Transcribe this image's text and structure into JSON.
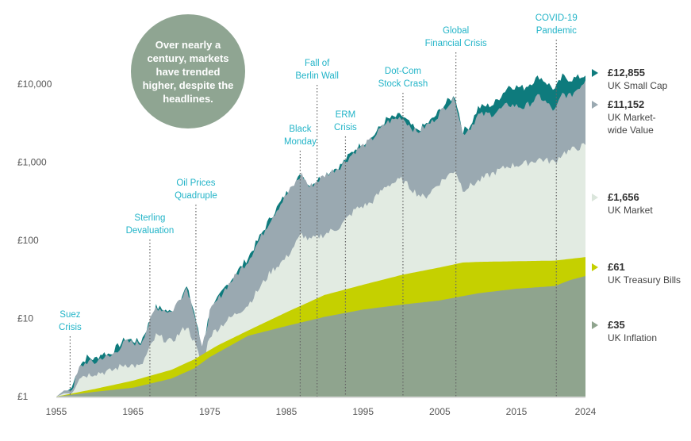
{
  "callout": "Over nearly a century, markets have trended higher, despite the headlines.",
  "chart_data": {
    "type": "area",
    "yscale": "log",
    "ylim": [
      1,
      20000
    ],
    "xlim": [
      1955,
      2024
    ],
    "yticks": [
      {
        "value": 1,
        "label": "£1"
      },
      {
        "value": 10,
        "label": "£10"
      },
      {
        "value": 100,
        "label": "£100"
      },
      {
        "value": 1000,
        "label": "£1,000"
      },
      {
        "value": 10000,
        "label": "£10,000"
      }
    ],
    "xticks": [
      1955,
      1965,
      1975,
      1985,
      1995,
      2005,
      2015,
      2024
    ],
    "series": [
      {
        "name": "UK Small Cap",
        "final": "£12,855",
        "color": "#0e7b7d",
        "x": [
          1955,
          1956,
          1957,
          1958,
          1959,
          1960,
          1961,
          1962,
          1964,
          1966,
          1968,
          1970,
          1972,
          1973,
          1974,
          1975,
          1977,
          1980,
          1983,
          1985,
          1987,
          1988,
          1990,
          1992,
          1994,
          1996,
          1998,
          2000,
          2002,
          2004,
          2006,
          2007,
          2008,
          2009,
          2010,
          2012,
          2014,
          2016,
          2018,
          2020,
          2021,
          2022,
          2024
        ],
        "y": [
          1,
          1.1,
          1.3,
          2.5,
          3.2,
          3.0,
          3.6,
          3.5,
          5.5,
          5,
          14,
          12,
          25,
          12,
          4,
          12,
          25,
          60,
          200,
          400,
          700,
          500,
          700,
          900,
          1500,
          2000,
          3500,
          4000,
          2500,
          3500,
          6000,
          7000,
          2500,
          3000,
          5000,
          5500,
          9500,
          9000,
          12500,
          8500,
          12500,
          11500,
          12855
        ]
      },
      {
        "name": "UK Market-wide Value",
        "final": "£11,152",
        "color": "#9aa9b1",
        "x": [
          1955,
          1956,
          1957,
          1958,
          1959,
          1960,
          1961,
          1962,
          1964,
          1966,
          1968,
          1970,
          1972,
          1973,
          1974,
          1975,
          1977,
          1980,
          1983,
          1985,
          1987,
          1988,
          1990,
          1992,
          1994,
          1996,
          1998,
          2000,
          2002,
          2004,
          2006,
          2007,
          2008,
          2009,
          2010,
          2012,
          2014,
          2016,
          2018,
          2020,
          2021,
          2022,
          2024
        ],
        "y": [
          1,
          1.2,
          1.2,
          2.3,
          2.8,
          2.7,
          3.2,
          3.2,
          5,
          4.8,
          14,
          12,
          25,
          12,
          4,
          12,
          24,
          55,
          190,
          380,
          700,
          480,
          680,
          880,
          1400,
          1900,
          3200,
          3800,
          2400,
          3300,
          5500,
          6500,
          2300,
          2800,
          4000,
          4200,
          5500,
          5000,
          7000,
          4500,
          7500,
          7000,
          11152
        ]
      },
      {
        "name": "UK Market",
        "final": "£1,656",
        "color": "#e2ebe2",
        "x": [
          1955,
          1956,
          1957,
          1958,
          1960,
          1962,
          1964,
          1966,
          1968,
          1970,
          1972,
          1973,
          1974,
          1975,
          1977,
          1980,
          1983,
          1985,
          1987,
          1988,
          1990,
          1992,
          1994,
          1996,
          1998,
          2000,
          2002,
          2003,
          2005,
          2007,
          2008,
          2009,
          2011,
          2014,
          2016,
          2018,
          2020,
          2021,
          2024
        ],
        "y": [
          1,
          1.1,
          1.1,
          1.8,
          2,
          2.1,
          2.6,
          2.4,
          6,
          5,
          8,
          5,
          2.5,
          6,
          9,
          15,
          40,
          60,
          120,
          100,
          120,
          150,
          250,
          300,
          500,
          600,
          400,
          350,
          550,
          800,
          450,
          500,
          650,
          900,
          950,
          1100,
          1000,
          1300,
          1656
        ]
      },
      {
        "name": "UK Treasury Bills",
        "final": "£61",
        "color": "#c5d000",
        "x": [
          1955,
          1960,
          1965,
          1970,
          1973,
          1976,
          1980,
          1985,
          1990,
          1995,
          2000,
          2005,
          2008,
          2010,
          2015,
          2020,
          2024
        ],
        "y": [
          1,
          1.25,
          1.6,
          2.2,
          3,
          4.5,
          7,
          12,
          20,
          27,
          36,
          45,
          52,
          53,
          54,
          55,
          61
        ]
      },
      {
        "name": "UK Inflation",
        "final": "£35",
        "color": "#8fa48e",
        "x": [
          1955,
          1960,
          1965,
          1970,
          1973,
          1975,
          1980,
          1985,
          1990,
          1995,
          2000,
          2005,
          2010,
          2015,
          2020,
          2022,
          2024
        ],
        "y": [
          1,
          1.15,
          1.3,
          1.7,
          2.3,
          3.2,
          6,
          8,
          10.5,
          13,
          15,
          17,
          21,
          24,
          26,
          31,
          35
        ]
      }
    ],
    "events": [
      {
        "label": [
          "Suez",
          "Crisis"
        ],
        "year": 1956.8
      },
      {
        "label": [
          "Sterling",
          "Devaluation"
        ],
        "year": 1967.2
      },
      {
        "label": [
          "Oil Prices",
          "Quadruple"
        ],
        "year": 1973.2
      },
      {
        "label": [
          "Black",
          "Monday"
        ],
        "year": 1986.8
      },
      {
        "label": [
          "Fall of",
          "Berlin Wall"
        ],
        "year": 1989.0
      },
      {
        "label": [
          "ERM",
          "Crisis"
        ],
        "year": 1992.7
      },
      {
        "label": [
          "Dot-Com",
          "Stock Crash"
        ],
        "year": 2000.2
      },
      {
        "label": [
          "Global",
          "Financial Crisis"
        ],
        "year": 2007.1
      },
      {
        "label": [
          "COVID-19",
          "Pandemic"
        ],
        "year": 2020.2
      }
    ]
  }
}
